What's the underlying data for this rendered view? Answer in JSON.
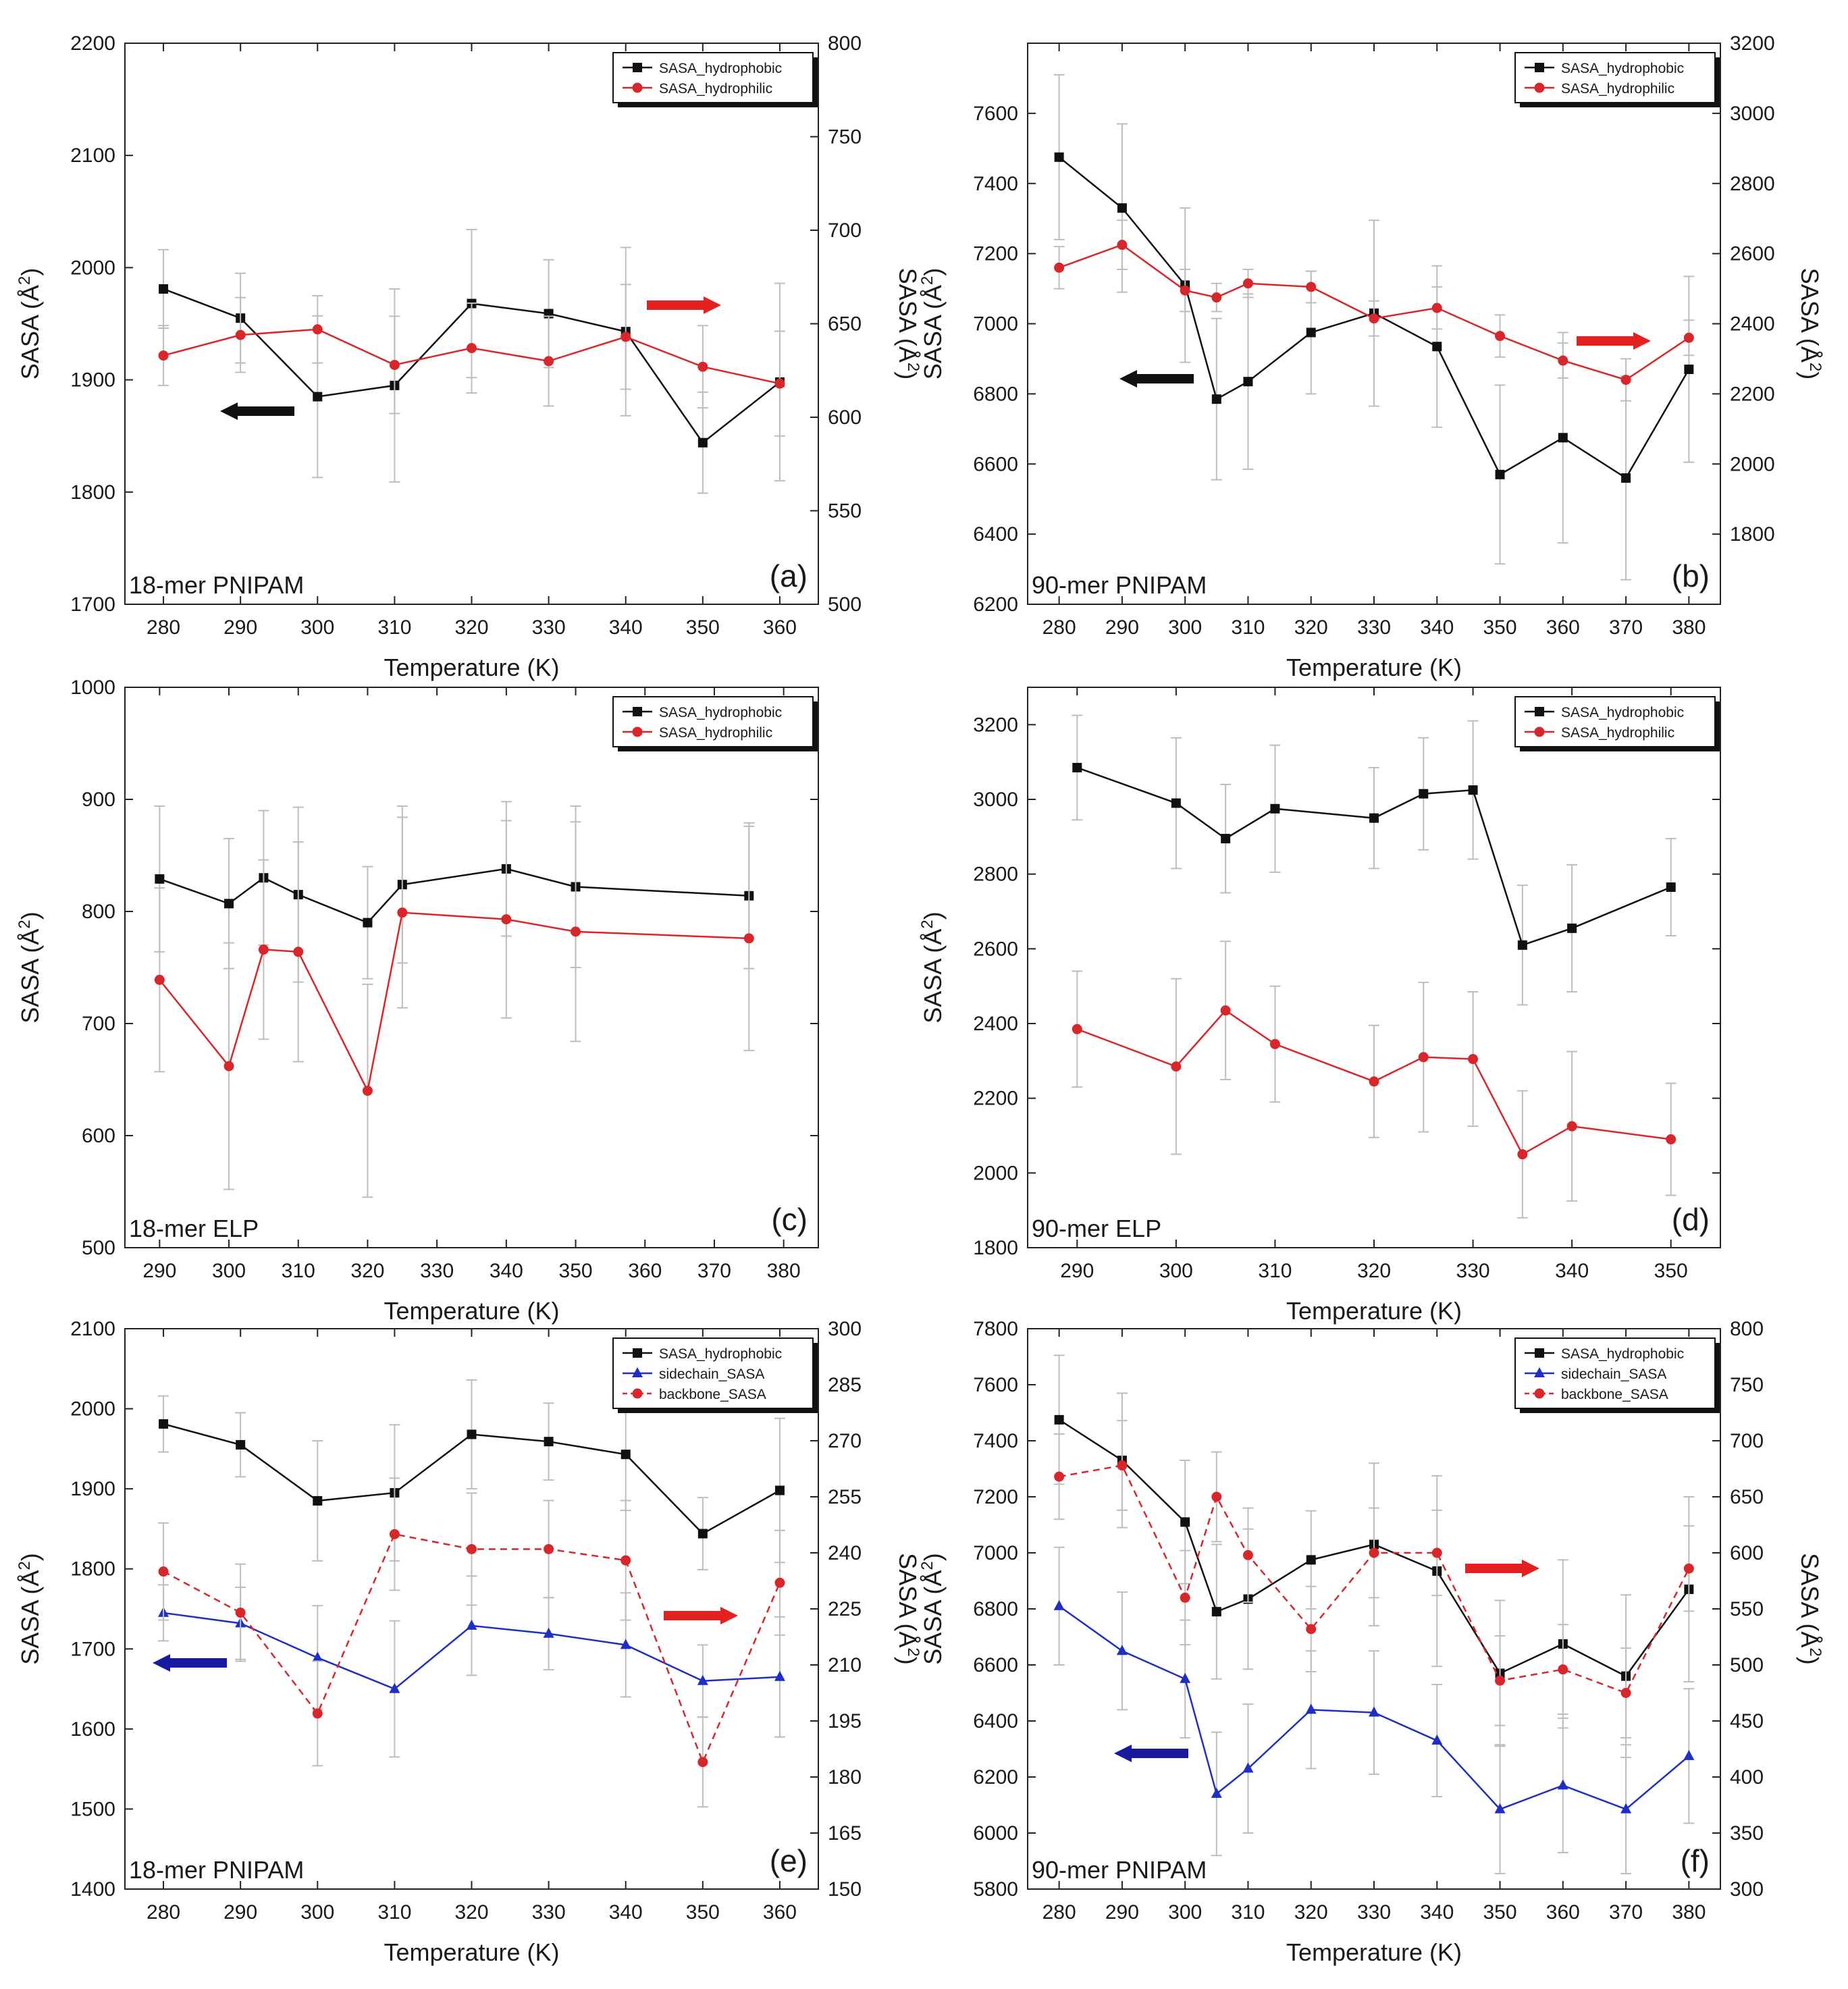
{
  "figure": {
    "colors": {
      "black": "#111111",
      "red": "#d9262b",
      "blue": "#1f2fc4",
      "error": "#bdbdbd",
      "arrow_black": "#111111",
      "arrow_red": "#e52020",
      "arrow_blue": "#1a1aa0"
    }
  },
  "chart_data": [
    {
      "id": "a",
      "type": "line",
      "panel_tag": "(a)",
      "panel_name": "18-mer PNIPAM",
      "xlabel": "Temperature (K)",
      "ylabel": "SASA (Å²)",
      "y2label": "SASA (Å²)",
      "xlim": [
        275,
        365
      ],
      "xticks": [
        280,
        290,
        300,
        310,
        320,
        330,
        340,
        350,
        360
      ],
      "ylim": [
        1700,
        2200
      ],
      "yticks": [
        1700,
        1800,
        1900,
        2000,
        2100,
        2200
      ],
      "y2lim": [
        500,
        800
      ],
      "y2ticks": [
        500,
        550,
        600,
        650,
        700,
        750,
        800
      ],
      "legend": [
        "SASA_hydrophobic",
        "SASA_hydrophilic"
      ],
      "arrows": [
        {
          "dir": "left",
          "color": "black"
        },
        {
          "dir": "right",
          "color": "red"
        }
      ],
      "series": [
        {
          "name": "SASA_hydrophobic",
          "axis": "left",
          "color": "black",
          "marker": "square",
          "dash": false,
          "x": [
            280,
            290,
            300,
            310,
            320,
            330,
            340,
            350,
            360
          ],
          "y": [
            1981,
            1955,
            1885,
            1895,
            1968,
            1959,
            1943,
            1844,
            1898
          ],
          "err": [
            35,
            40,
            72,
            86,
            66,
            48,
            75,
            45,
            88
          ]
        },
        {
          "name": "SASA_hydrophilic",
          "axis": "right",
          "color": "red",
          "marker": "circle",
          "dash": false,
          "x": [
            280,
            290,
            300,
            310,
            320,
            330,
            340,
            350,
            360
          ],
          "y": [
            633,
            644,
            647,
            628,
            637,
            630,
            643,
            627,
            618
          ],
          "err": [
            16,
            20,
            18,
            26,
            24,
            24,
            28,
            22,
            28
          ]
        }
      ]
    },
    {
      "id": "b",
      "type": "line",
      "panel_tag": "(b)",
      "panel_name": "90-mer PNIPAM",
      "xlabel": "Temperature (K)",
      "ylabel": "SASA (Å²)",
      "y2label": "SASA (Å²)",
      "xlim": [
        275,
        385
      ],
      "xticks": [
        280,
        290,
        300,
        310,
        320,
        330,
        340,
        350,
        360,
        370,
        380
      ],
      "ylim": [
        6200,
        7800
      ],
      "yticks": [
        6200,
        6400,
        6600,
        6800,
        7000,
        7200,
        7400,
        7600
      ],
      "y2lim": [
        1600,
        3200
      ],
      "y2ticks": [
        1800,
        2000,
        2200,
        2400,
        2600,
        2800,
        3000,
        3200
      ],
      "legend": [
        "SASA_hydrophobic",
        "SASA_hydrophilic"
      ],
      "arrows": [
        {
          "dir": "left",
          "color": "black"
        },
        {
          "dir": "right",
          "color": "red"
        }
      ],
      "series": [
        {
          "name": "SASA_hydrophobic",
          "axis": "left",
          "color": "black",
          "marker": "square",
          "dash": false,
          "x": [
            280,
            290,
            300,
            305,
            310,
            320,
            330,
            340,
            350,
            360,
            370,
            380
          ],
          "y": [
            7475,
            7330,
            7110,
            6785,
            6835,
            6975,
            7030,
            6935,
            6570,
            6675,
            6560,
            6870
          ],
          "err": [
            235,
            240,
            220,
            230,
            250,
            175,
            265,
            230,
            255,
            300,
            290,
            265
          ]
        },
        {
          "name": "SASA_hydrophilic",
          "axis": "right",
          "color": "red",
          "marker": "circle",
          "dash": false,
          "x": [
            280,
            290,
            300,
            305,
            310,
            320,
            330,
            340,
            350,
            360,
            370,
            380
          ],
          "y": [
            2560,
            2625,
            2495,
            2475,
            2515,
            2505,
            2415,
            2445,
            2365,
            2295,
            2240,
            2360
          ],
          "err": [
            60,
            70,
            60,
            40,
            40,
            45,
            50,
            60,
            60,
            50,
            60,
            50
          ]
        }
      ]
    },
    {
      "id": "c",
      "type": "line",
      "panel_tag": "(c)",
      "panel_name": "18-mer ELP",
      "xlabel": "Temperature (K)",
      "ylabel": "SASA (Å²)",
      "xlim": [
        285,
        385
      ],
      "xticks": [
        290,
        300,
        310,
        320,
        330,
        340,
        350,
        360,
        370,
        380
      ],
      "ylim": [
        500,
        1000
      ],
      "yticks": [
        500,
        600,
        700,
        800,
        900,
        1000
      ],
      "legend": [
        "SASA_hydrophobic",
        "SASA_hydrophilic"
      ],
      "arrows": [],
      "series": [
        {
          "name": "SASA_hydrophobic",
          "axis": "left",
          "color": "black",
          "marker": "square",
          "dash": false,
          "x": [
            290,
            300,
            305,
            310,
            320,
            325,
            340,
            350,
            375
          ],
          "y": [
            829,
            807,
            830,
            815,
            790,
            824,
            838,
            822,
            814
          ],
          "err": [
            65,
            58,
            60,
            78,
            50,
            70,
            60,
            72,
            65
          ]
        },
        {
          "name": "SASA_hydrophilic",
          "axis": "left",
          "color": "red",
          "marker": "circle",
          "dash": false,
          "x": [
            290,
            300,
            305,
            310,
            320,
            325,
            340,
            350,
            375
          ],
          "y": [
            739,
            662,
            766,
            764,
            640,
            799,
            793,
            782,
            776
          ],
          "err": [
            82,
            110,
            80,
            98,
            95,
            85,
            88,
            98,
            100
          ]
        }
      ]
    },
    {
      "id": "d",
      "type": "line",
      "panel_tag": "(d)",
      "panel_name": "90-mer ELP",
      "xlabel": "Temperature (K)",
      "ylabel": "SASA (Å²)",
      "xlim": [
        285,
        355
      ],
      "xticks": [
        290,
        300,
        310,
        320,
        330,
        340,
        350
      ],
      "ylim": [
        1800,
        3300
      ],
      "yticks": [
        1800,
        2000,
        2200,
        2400,
        2600,
        2800,
        3000,
        3200
      ],
      "legend": [
        "SASA_hydrophobic",
        "SASA_hydrophilic"
      ],
      "arrows": [],
      "series": [
        {
          "name": "SASA_hydrophobic",
          "axis": "left",
          "color": "black",
          "marker": "square",
          "dash": false,
          "x": [
            290,
            300,
            305,
            310,
            320,
            325,
            330,
            335,
            340,
            350
          ],
          "y": [
            3085,
            2990,
            2895,
            2975,
            2950,
            3015,
            3025,
            2610,
            2655,
            2765
          ],
          "err": [
            140,
            175,
            145,
            170,
            135,
            150,
            185,
            160,
            170,
            130
          ]
        },
        {
          "name": "SASA_hydrophilic",
          "axis": "left",
          "color": "red",
          "marker": "circle",
          "dash": false,
          "x": [
            290,
            300,
            305,
            310,
            320,
            325,
            330,
            335,
            340,
            350
          ],
          "y": [
            2385,
            2285,
            2435,
            2345,
            2245,
            2310,
            2305,
            2050,
            2125,
            2090
          ],
          "err": [
            155,
            235,
            185,
            155,
            150,
            200,
            180,
            170,
            200,
            150
          ]
        }
      ]
    },
    {
      "id": "e",
      "type": "line",
      "panel_tag": "(e)",
      "panel_name": "18-mer PNIPAM",
      "xlabel": "Temperature (K)",
      "ylabel": "SASA (Å²)",
      "y2label": "SASA (Å²)",
      "xlim": [
        275,
        365
      ],
      "xticks": [
        280,
        290,
        300,
        310,
        320,
        330,
        340,
        350,
        360
      ],
      "ylim": [
        1400,
        2100
      ],
      "yticks": [
        1400,
        1500,
        1600,
        1700,
        1800,
        1900,
        2000,
        2100
      ],
      "y2lim": [
        150,
        300
      ],
      "y2ticks": [
        150,
        165,
        180,
        195,
        210,
        225,
        240,
        255,
        270,
        285,
        300
      ],
      "legend": [
        "SASA_hydrophobic",
        "sidechain_SASA",
        "backbone_SASA"
      ],
      "arrows": [
        {
          "dir": "left",
          "color": "blue"
        },
        {
          "dir": "right",
          "color": "red"
        }
      ],
      "series": [
        {
          "name": "SASA_hydrophobic",
          "axis": "left",
          "color": "black",
          "marker": "square",
          "dash": false,
          "x": [
            280,
            290,
            300,
            310,
            320,
            330,
            340,
            350,
            360
          ],
          "y": [
            1981,
            1955,
            1885,
            1895,
            1968,
            1959,
            1943,
            1844,
            1898
          ],
          "err": [
            35,
            40,
            75,
            85,
            68,
            48,
            70,
            45,
            90
          ]
        },
        {
          "name": "sidechain_SASA",
          "axis": "left",
          "color": "blue",
          "marker": "triangle",
          "dash": false,
          "x": [
            280,
            290,
            300,
            310,
            320,
            330,
            340,
            350,
            360
          ],
          "y": [
            1745,
            1732,
            1689,
            1650,
            1729,
            1719,
            1705,
            1660,
            1665
          ],
          "err": [
            35,
            45,
            65,
            85,
            62,
            45,
            65,
            45,
            75
          ]
        },
        {
          "name": "backbone_SASA",
          "axis": "right",
          "color": "red",
          "marker": "circle",
          "dash": true,
          "x": [
            280,
            290,
            300,
            310,
            320,
            330,
            340,
            350,
            360
          ],
          "y": [
            235,
            224,
            197,
            245,
            241,
            241,
            238,
            184,
            232
          ],
          "err": [
            13,
            13,
            14,
            15,
            15,
            13,
            16,
            12,
            14
          ]
        }
      ]
    },
    {
      "id": "f",
      "type": "line",
      "panel_tag": "(f)",
      "panel_name": "90-mer PNIPAM",
      "xlabel": "Temperature (K)",
      "ylabel": "SASA (Å²)",
      "y2label": "SASA (Å²)",
      "xlim": [
        275,
        385
      ],
      "xticks": [
        280,
        290,
        300,
        310,
        320,
        330,
        340,
        350,
        360,
        370,
        380
      ],
      "ylim": [
        5800,
        7800
      ],
      "yticks": [
        5800,
        6000,
        6200,
        6400,
        6600,
        6800,
        7000,
        7200,
        7400,
        7600,
        7800
      ],
      "y2lim": [
        300,
        800
      ],
      "y2ticks": [
        300,
        350,
        400,
        450,
        500,
        550,
        600,
        650,
        700,
        750,
        800
      ],
      "legend": [
        "SASA_hydrophobic",
        "sidechain_SASA",
        "backbone_SASA"
      ],
      "arrows": [
        {
          "dir": "left",
          "color": "blue"
        },
        {
          "dir": "right",
          "color": "red"
        }
      ],
      "series": [
        {
          "name": "SASA_hydrophobic",
          "axis": "left",
          "color": "black",
          "marker": "square",
          "dash": false,
          "x": [
            280,
            290,
            300,
            305,
            310,
            320,
            330,
            340,
            350,
            360,
            370,
            380
          ],
          "y": [
            7475,
            7330,
            7110,
            6790,
            6835,
            6975,
            7030,
            6935,
            6570,
            6675,
            6560,
            6870
          ],
          "err": [
            230,
            240,
            220,
            240,
            250,
            175,
            290,
            340,
            260,
            300,
            290,
            330
          ]
        },
        {
          "name": "sidechain_SASA",
          "axis": "left",
          "color": "blue",
          "marker": "triangle",
          "dash": false,
          "x": [
            280,
            290,
            300,
            305,
            310,
            320,
            330,
            340,
            350,
            360,
            370,
            380
          ],
          "y": [
            6810,
            6650,
            6550,
            6140,
            6230,
            6440,
            6430,
            6330,
            6085,
            6170,
            6085,
            6275
          ],
          "err": [
            210,
            210,
            210,
            220,
            230,
            210,
            220,
            200,
            230,
            240,
            230,
            240
          ]
        },
        {
          "name": "backbone_SASA",
          "axis": "right",
          "color": "red",
          "marker": "circle",
          "dash": true,
          "x": [
            280,
            290,
            300,
            305,
            310,
            320,
            330,
            340,
            350,
            360,
            370,
            380
          ],
          "y": [
            668,
            678,
            560,
            650,
            598,
            532,
            600,
            600,
            486,
            496,
            475,
            586
          ],
          "err": [
            38,
            40,
            42,
            40,
            42,
            38,
            40,
            38,
            40,
            40,
            40,
            38
          ]
        }
      ]
    }
  ]
}
